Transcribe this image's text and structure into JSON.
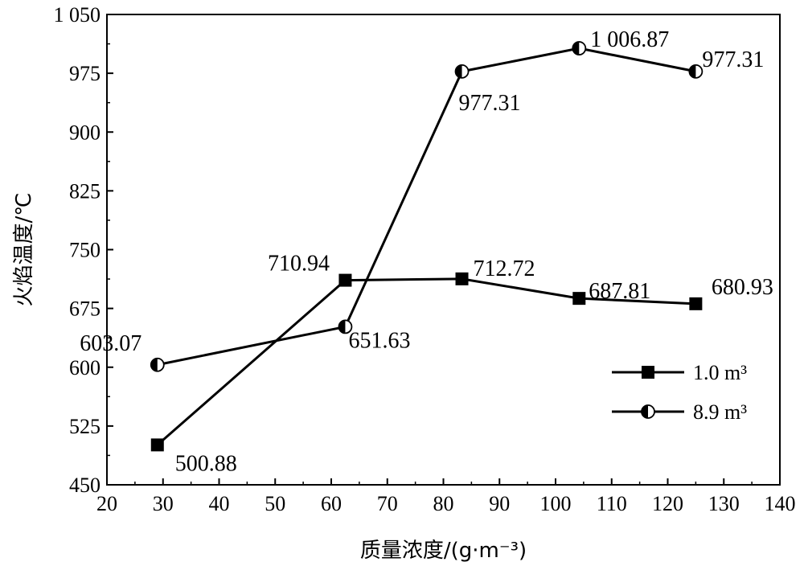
{
  "chart_data": {
    "type": "line",
    "xlabel": "质量浓度/(g·m⁻³)",
    "ylabel": "火焰温度/℃",
    "xlim": [
      20,
      140
    ],
    "ylim": [
      450,
      1050
    ],
    "xticks": [
      "20",
      "30",
      "40",
      "50",
      "60",
      "70",
      "80",
      "90",
      "100",
      "110",
      "120",
      "130",
      "140"
    ],
    "yticks": [
      "450",
      "525",
      "600",
      "675",
      "750",
      "825",
      "900",
      "975",
      "1 050"
    ],
    "grid": false,
    "legend_position": "right",
    "series": [
      {
        "name": "1.0 m³",
        "marker": "square-filled",
        "color": "#000000",
        "x": [
          29,
          62.5,
          83.3,
          104.2,
          125
        ],
        "values": [
          500.88,
          710.94,
          712.72,
          687.81,
          680.93
        ],
        "labels": [
          "500.88",
          "710.94",
          "712.72",
          "687.81",
          "680.93"
        ]
      },
      {
        "name": "8.9 m³",
        "marker": "circle-half",
        "color": "#000000",
        "x": [
          29,
          62.5,
          83.3,
          104.2,
          125
        ],
        "values": [
          603.07,
          651.63,
          977.31,
          1006.87,
          977.31
        ],
        "labels": [
          "603.07",
          "651.63",
          "977.31",
          "1 006.87",
          "977.31"
        ]
      }
    ]
  }
}
